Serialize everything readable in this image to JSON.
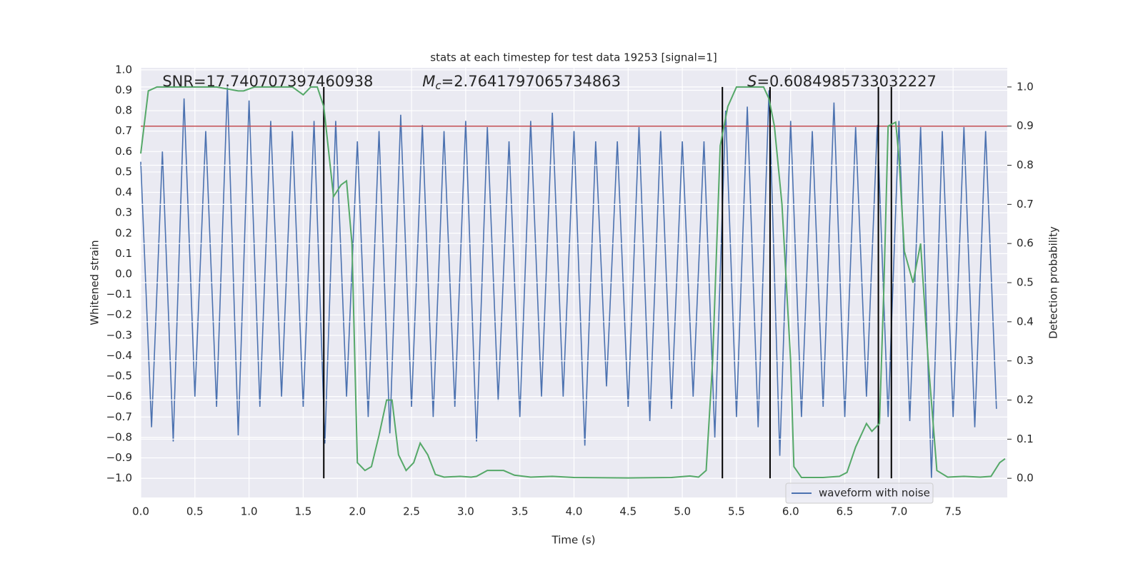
{
  "chart_data": {
    "type": "line",
    "title": "stats at each timestep for test data 19253 [signal=1]",
    "xlabel": "Time (s)",
    "ylabel": "Whitened strain",
    "y2label": "Detection probability",
    "annotations": [
      {
        "text": "SNR=17.740707397460938",
        "x": 0.2
      },
      {
        "symbol": "M",
        "subscript": "c",
        "text": "=2.7641797065734863",
        "x": 2.6
      },
      {
        "symbol": "S",
        "text": "=0.6084985733032227",
        "x": 5.6
      }
    ],
    "xlim": [
      0,
      8
    ],
    "ylim": [
      -1.094,
      1.01
    ],
    "y2lim": [
      -0.049,
      1.049
    ],
    "xticks": [
      {
        "value": 0,
        "label": "0.0"
      },
      0.5,
      {
        "value": 1,
        "label": "1.0"
      },
      1.5,
      {
        "value": 2,
        "label": "2.0"
      },
      2.5,
      {
        "value": 3,
        "label": "3.0"
      },
      3.5,
      {
        "value": 4,
        "label": "4.0"
      },
      4.5,
      {
        "value": 5,
        "label": "5.0"
      },
      5.5,
      {
        "value": 6,
        "label": "6.0"
      },
      6.5,
      {
        "value": 7,
        "label": "7.0"
      },
      7.5
    ],
    "yticks": [
      {
        "value": 1,
        "label": "1.0"
      },
      0.9,
      0.8,
      0.7,
      0.6,
      0.5,
      0.4,
      0.3,
      0.2,
      0.1,
      {
        "value": 0,
        "label": "0.0"
      },
      {
        "value": -0.1,
        "label": "−0.1"
      },
      {
        "value": -0.2,
        "label": "−0.2"
      },
      {
        "value": -0.3,
        "label": "−0.3"
      },
      {
        "value": -0.4,
        "label": "−0.4"
      },
      {
        "value": -0.5,
        "label": "−0.5"
      },
      {
        "value": -0.6,
        "label": "−0.6"
      },
      {
        "value": -0.7,
        "label": "−0.7"
      },
      {
        "value": -0.8,
        "label": "−0.8"
      },
      {
        "value": -0.9,
        "label": "−0.9"
      },
      {
        "value": -1,
        "label": "−1.0"
      }
    ],
    "y2ticks": [
      {
        "value": 0,
        "label": "0.0"
      },
      0.1,
      0.2,
      0.3,
      0.4,
      0.5,
      0.6,
      0.7,
      0.8,
      0.9,
      {
        "value": 1,
        "label": "1.0"
      }
    ],
    "grid": true,
    "legend": "lower right",
    "threshold": {
      "value": 0.9,
      "axis": "y2",
      "color": "#c44e52"
    },
    "vlines": {
      "x": [
        1.69,
        5.37,
        5.81,
        6.81,
        6.93
      ],
      "bottom": 0,
      "top": 1,
      "axis": "y2",
      "color": "#000000"
    },
    "series": [
      {
        "name": "waveform with noise",
        "color": "#4c72b0",
        "x": [
          0.0,
          0.1,
          0.2,
          0.3,
          0.4,
          0.5,
          0.6,
          0.7,
          0.8,
          0.9,
          1.0,
          1.1,
          1.2,
          1.3,
          1.4,
          1.5,
          1.6,
          1.7,
          1.8,
          1.9,
          2.0,
          2.1,
          2.2,
          2.3,
          2.4,
          2.5,
          2.6,
          2.7,
          2.8,
          2.9,
          3.0,
          3.1,
          3.2,
          3.3,
          3.4,
          3.5,
          3.6,
          3.7,
          3.8,
          3.9,
          4.0,
          4.1,
          4.2,
          4.3,
          4.4,
          4.5,
          4.6,
          4.7,
          4.8,
          4.9,
          5.0,
          5.1,
          5.2,
          5.3,
          5.4,
          5.5,
          5.6,
          5.7,
          5.8,
          5.9,
          6.0,
          6.1,
          6.2,
          6.3,
          6.4,
          6.5,
          6.6,
          6.7,
          6.8,
          6.9,
          7.0,
          7.1,
          7.2,
          7.3,
          7.4,
          7.5,
          7.6,
          7.7,
          7.8,
          7.9
        ],
        "values": [
          0.55,
          -0.75,
          0.6,
          -0.82,
          0.86,
          -0.6,
          0.7,
          -0.65,
          0.92,
          -0.79,
          0.85,
          -0.65,
          0.75,
          -0.6,
          0.7,
          -0.65,
          0.75,
          -0.83,
          0.75,
          -0.6,
          0.65,
          -0.7,
          0.7,
          -0.78,
          0.78,
          -0.65,
          0.73,
          -0.7,
          0.7,
          -0.65,
          0.75,
          -0.82,
          0.72,
          -0.62,
          0.65,
          -0.7,
          0.75,
          -0.6,
          0.79,
          -0.6,
          0.7,
          -0.84,
          0.65,
          -0.55,
          0.65,
          -0.65,
          0.72,
          -0.72,
          0.7,
          -0.66,
          0.65,
          -0.6,
          0.65,
          -0.8,
          0.8,
          -0.7,
          0.82,
          -0.75,
          0.9,
          -0.89,
          0.75,
          -0.7,
          0.7,
          -0.65,
          0.84,
          -0.7,
          0.72,
          -0.6,
          0.73,
          -0.7,
          0.75,
          -0.72,
          0.72,
          -1.0,
          0.7,
          -0.7,
          0.72,
          -0.75,
          0.7,
          -0.66
        ]
      },
      {
        "color": "#55a868",
        "axis": "y2",
        "x": [
          0.0,
          0.07,
          0.15,
          0.3,
          0.5,
          0.7,
          0.9,
          0.95,
          1.05,
          1.2,
          1.4,
          1.5,
          1.57,
          1.63,
          1.69,
          1.78,
          1.85,
          1.9,
          1.95,
          2.0,
          2.07,
          2.13,
          2.2,
          2.27,
          2.32,
          2.38,
          2.45,
          2.52,
          2.58,
          2.65,
          2.72,
          2.8,
          2.95,
          3.05,
          3.1,
          3.2,
          3.25,
          3.35,
          3.45,
          3.6,
          3.8,
          4.0,
          4.5,
          4.9,
          5.07,
          5.15,
          5.22,
          5.28,
          5.35,
          5.42,
          5.5,
          5.6,
          5.75,
          5.8,
          5.85,
          5.92,
          6.0,
          6.03,
          6.1,
          6.3,
          6.45,
          6.52,
          6.6,
          6.7,
          6.75,
          6.82,
          6.86,
          6.9,
          6.97,
          7.0,
          7.05,
          7.13,
          7.2,
          7.27,
          7.35,
          7.45,
          7.6,
          7.75,
          7.85,
          7.93,
          7.98
        ],
        "values": [
          0.83,
          0.99,
          1.0,
          1.0,
          1.0,
          1.0,
          0.99,
          0.99,
          1.0,
          1.0,
          1.0,
          0.98,
          1.0,
          1.0,
          0.95,
          0.72,
          0.75,
          0.76,
          0.6,
          0.04,
          0.02,
          0.03,
          0.11,
          0.2,
          0.2,
          0.06,
          0.02,
          0.04,
          0.09,
          0.06,
          0.01,
          0.003,
          0.005,
          0.003,
          0.005,
          0.02,
          0.02,
          0.02,
          0.008,
          0.003,
          0.005,
          0.002,
          0.001,
          0.002,
          0.006,
          0.003,
          0.02,
          0.3,
          0.85,
          0.95,
          1.0,
          1.0,
          1.0,
          0.97,
          0.9,
          0.7,
          0.3,
          0.03,
          0.002,
          0.002,
          0.005,
          0.015,
          0.08,
          0.14,
          0.12,
          0.14,
          0.48,
          0.9,
          0.91,
          0.82,
          0.58,
          0.5,
          0.6,
          0.3,
          0.02,
          0.003,
          0.005,
          0.003,
          0.005,
          0.04,
          0.05
        ]
      }
    ]
  }
}
